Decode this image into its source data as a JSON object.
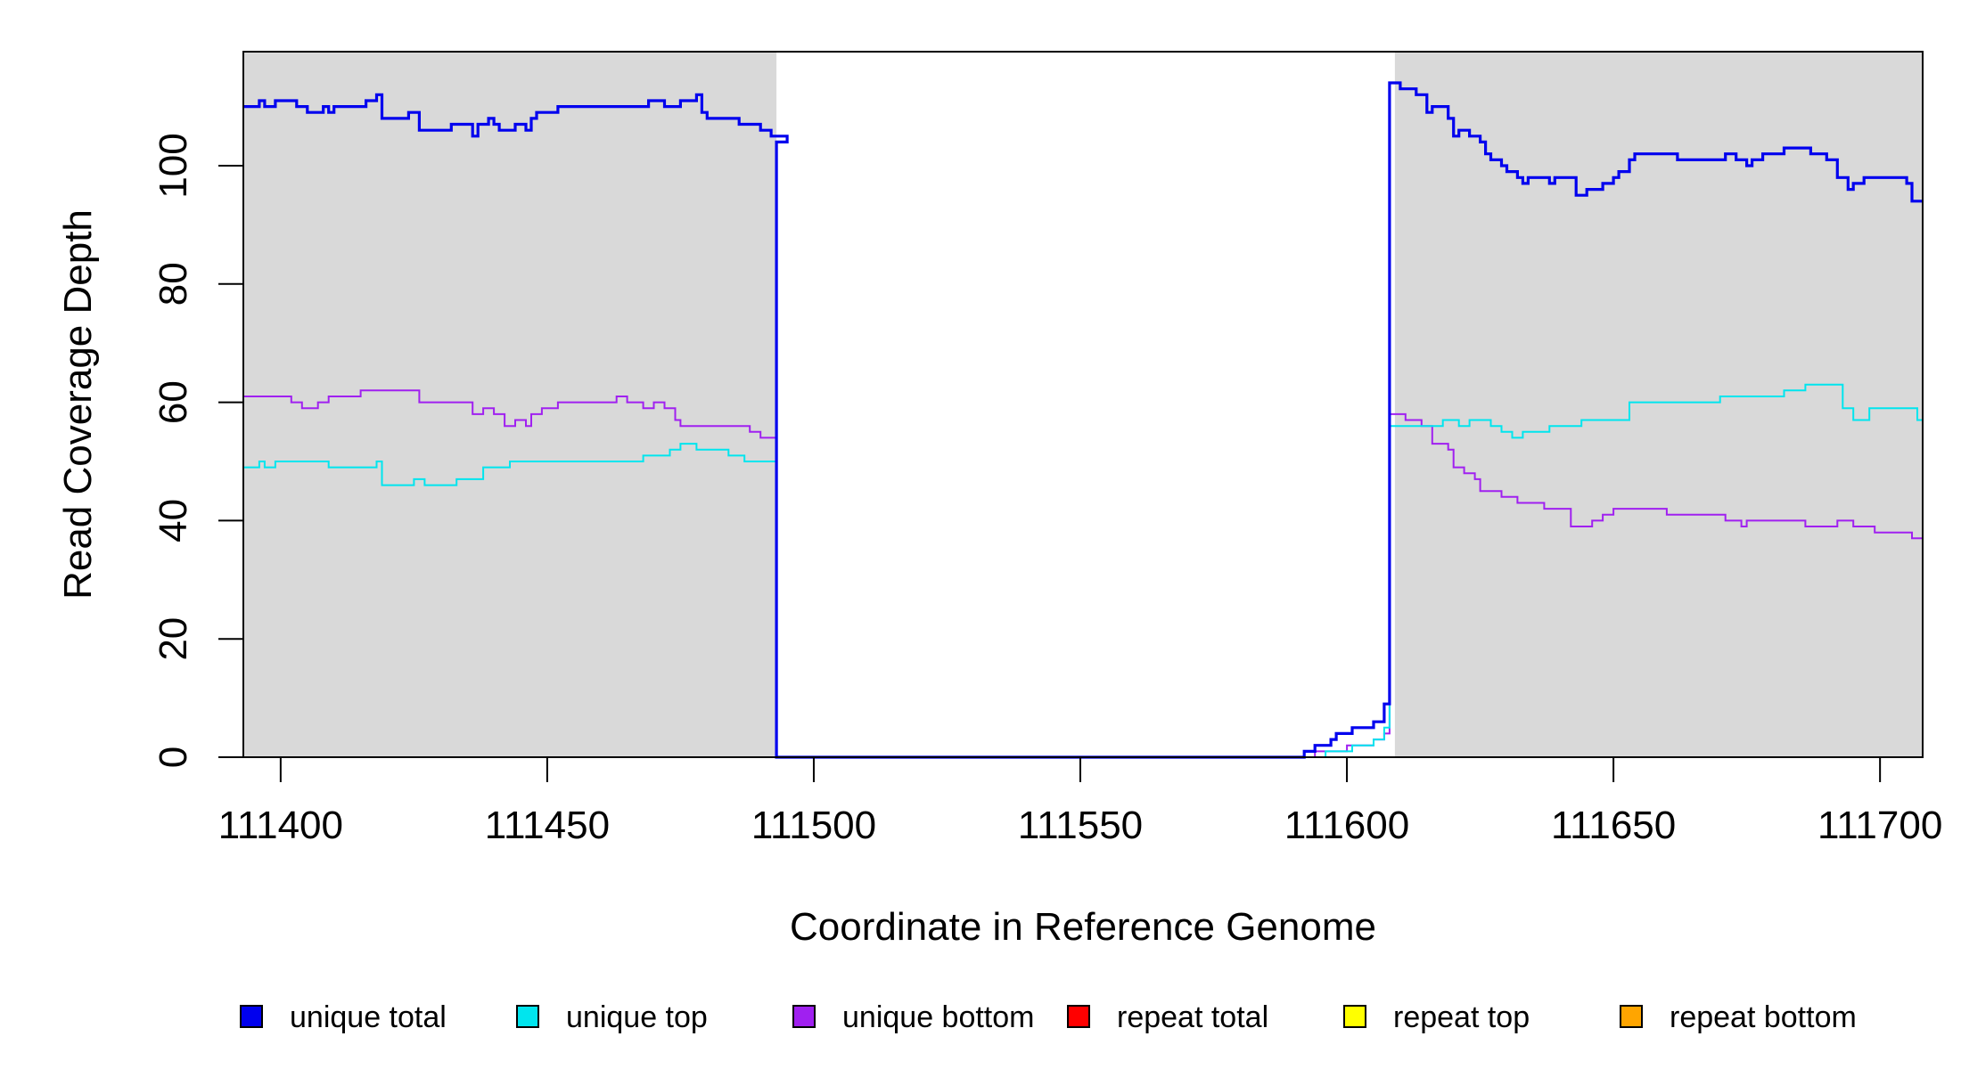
{
  "chart_data": {
    "type": "line",
    "title": "",
    "xlabel": "Coordinate in Reference Genome",
    "ylabel": "Read Coverage Depth",
    "xlim": [
      111393,
      111708
    ],
    "ylim": [
      0,
      120
    ],
    "x_ticks": [
      111400,
      111450,
      111500,
      111550,
      111600,
      111650,
      111700
    ],
    "x_tick_labels": [
      "111400",
      "111450",
      "111500",
      "111550",
      "111600",
      "111650",
      "111700"
    ],
    "y_ticks": [
      0,
      20,
      40,
      60,
      80,
      100
    ],
    "y_tick_labels": [
      "0",
      "20",
      "40",
      "60",
      "80",
      "100"
    ],
    "grid": false,
    "legend_position": "bottom",
    "shaded_regions": [
      {
        "x_start": 111393,
        "x_end": 111493,
        "color": "#d9d9d9"
      },
      {
        "x_start": 111609,
        "x_end": 111708,
        "color": "#d9d9d9"
      }
    ],
    "series": [
      {
        "name": "unique total",
        "color": "#0000ee",
        "step": true,
        "points": [
          [
            111393,
            110
          ],
          [
            111396,
            111
          ],
          [
            111397,
            110
          ],
          [
            111399,
            111
          ],
          [
            111403,
            110
          ],
          [
            111405,
            109
          ],
          [
            111408,
            110
          ],
          [
            111409,
            109
          ],
          [
            111410,
            110
          ],
          [
            111416,
            111
          ],
          [
            111418,
            112
          ],
          [
            111419,
            108
          ],
          [
            111424,
            109
          ],
          [
            111426,
            106
          ],
          [
            111432,
            107
          ],
          [
            111436,
            105
          ],
          [
            111437,
            107
          ],
          [
            111439,
            108
          ],
          [
            111440,
            107
          ],
          [
            111441,
            106
          ],
          [
            111444,
            107
          ],
          [
            111446,
            106
          ],
          [
            111447,
            108
          ],
          [
            111448,
            109
          ],
          [
            111452,
            110
          ],
          [
            111469,
            111
          ],
          [
            111472,
            110
          ],
          [
            111475,
            111
          ],
          [
            111478,
            112
          ],
          [
            111479,
            109
          ],
          [
            111480,
            108
          ],
          [
            111486,
            107
          ],
          [
            111490,
            106
          ],
          [
            111492,
            105
          ],
          [
            111495,
            104
          ],
          [
            111493,
            0
          ],
          [
            111592,
            1
          ],
          [
            111594,
            2
          ],
          [
            111597,
            3
          ],
          [
            111598,
            4
          ],
          [
            111601,
            5
          ],
          [
            111605,
            6
          ],
          [
            111607,
            9
          ],
          [
            111608,
            114
          ],
          [
            111610,
            113
          ],
          [
            111613,
            112
          ],
          [
            111615,
            109
          ],
          [
            111616,
            110
          ],
          [
            111619,
            108
          ],
          [
            111620,
            105
          ],
          [
            111621,
            106
          ],
          [
            111623,
            105
          ],
          [
            111625,
            104
          ],
          [
            111626,
            102
          ],
          [
            111627,
            101
          ],
          [
            111629,
            100
          ],
          [
            111630,
            99
          ],
          [
            111632,
            98
          ],
          [
            111633,
            97
          ],
          [
            111634,
            98
          ],
          [
            111638,
            97
          ],
          [
            111639,
            98
          ],
          [
            111643,
            95
          ],
          [
            111645,
            96
          ],
          [
            111648,
            97
          ],
          [
            111650,
            98
          ],
          [
            111651,
            99
          ],
          [
            111653,
            101
          ],
          [
            111654,
            102
          ],
          [
            111662,
            101
          ],
          [
            111668,
            101
          ],
          [
            111671,
            102
          ],
          [
            111673,
            101
          ],
          [
            111675,
            100
          ],
          [
            111676,
            101
          ],
          [
            111678,
            102
          ],
          [
            111682,
            103
          ],
          [
            111687,
            102
          ],
          [
            111690,
            101
          ],
          [
            111692,
            98
          ],
          [
            111694,
            96
          ],
          [
            111695,
            97
          ],
          [
            111697,
            98
          ],
          [
            111705,
            97
          ],
          [
            111706,
            94
          ],
          [
            111708,
            94
          ]
        ]
      },
      {
        "name": "unique top",
        "color": "#00e5ee",
        "step": true,
        "points": [
          [
            111393,
            49
          ],
          [
            111396,
            50
          ],
          [
            111397,
            49
          ],
          [
            111399,
            50
          ],
          [
            111409,
            49
          ],
          [
            111418,
            50
          ],
          [
            111419,
            46
          ],
          [
            111425,
            47
          ],
          [
            111427,
            46
          ],
          [
            111433,
            47
          ],
          [
            111438,
            49
          ],
          [
            111443,
            50
          ],
          [
            111468,
            51
          ],
          [
            111473,
            52
          ],
          [
            111475,
            53
          ],
          [
            111478,
            52
          ],
          [
            111484,
            51
          ],
          [
            111487,
            50
          ],
          [
            111493,
            50
          ],
          [
            111493,
            0
          ],
          [
            111596,
            1
          ],
          [
            111601,
            2
          ],
          [
            111605,
            3
          ],
          [
            111607,
            5
          ],
          [
            111608,
            56
          ],
          [
            111612,
            56
          ],
          [
            111618,
            57
          ],
          [
            111621,
            56
          ],
          [
            111623,
            57
          ],
          [
            111627,
            56
          ],
          [
            111629,
            55
          ],
          [
            111631,
            54
          ],
          [
            111633,
            55
          ],
          [
            111638,
            56
          ],
          [
            111644,
            57
          ],
          [
            111653,
            60
          ],
          [
            111670,
            61
          ],
          [
            111677,
            61
          ],
          [
            111682,
            62
          ],
          [
            111686,
            63
          ],
          [
            111693,
            59
          ],
          [
            111695,
            57
          ],
          [
            111698,
            59
          ],
          [
            111707,
            57
          ],
          [
            111708,
            57
          ]
        ]
      },
      {
        "name": "unique bottom",
        "color": "#a020f0",
        "step": true,
        "points": [
          [
            111393,
            61
          ],
          [
            111402,
            60
          ],
          [
            111404,
            59
          ],
          [
            111407,
            60
          ],
          [
            111409,
            61
          ],
          [
            111415,
            62
          ],
          [
            111426,
            60
          ],
          [
            111436,
            58
          ],
          [
            111438,
            59
          ],
          [
            111440,
            58
          ],
          [
            111442,
            56
          ],
          [
            111444,
            57
          ],
          [
            111446,
            56
          ],
          [
            111447,
            58
          ],
          [
            111449,
            59
          ],
          [
            111452,
            60
          ],
          [
            111463,
            61
          ],
          [
            111465,
            60
          ],
          [
            111468,
            59
          ],
          [
            111470,
            60
          ],
          [
            111472,
            59
          ],
          [
            111474,
            57
          ],
          [
            111475,
            56
          ],
          [
            111488,
            55
          ],
          [
            111490,
            54
          ],
          [
            111493,
            54
          ],
          [
            111493,
            0
          ],
          [
            111594,
            1
          ],
          [
            111600,
            2
          ],
          [
            111605,
            3
          ],
          [
            111607,
            4
          ],
          [
            111608,
            58
          ],
          [
            111611,
            57
          ],
          [
            111614,
            56
          ],
          [
            111616,
            53
          ],
          [
            111619,
            52
          ],
          [
            111620,
            49
          ],
          [
            111622,
            48
          ],
          [
            111624,
            47
          ],
          [
            111625,
            45
          ],
          [
            111629,
            44
          ],
          [
            111632,
            43
          ],
          [
            111637,
            42
          ],
          [
            111642,
            39
          ],
          [
            111646,
            40
          ],
          [
            111648,
            41
          ],
          [
            111650,
            42
          ],
          [
            111660,
            41
          ],
          [
            111671,
            40
          ],
          [
            111674,
            39
          ],
          [
            111675,
            40
          ],
          [
            111686,
            39
          ],
          [
            111692,
            40
          ],
          [
            111695,
            39
          ],
          [
            111699,
            38
          ],
          [
            111706,
            37
          ],
          [
            111708,
            37
          ]
        ]
      },
      {
        "name": "repeat total",
        "color": "#ff0000",
        "step": true,
        "points": [
          [
            111393,
            0
          ],
          [
            111708,
            0
          ]
        ]
      },
      {
        "name": "repeat top",
        "color": "#ffff00",
        "step": true,
        "points": [
          [
            111393,
            0
          ],
          [
            111708,
            0
          ]
        ]
      },
      {
        "name": "repeat bottom",
        "color": "#ffa500",
        "step": true,
        "points": [
          [
            111393,
            0
          ],
          [
            111708,
            0
          ]
        ]
      }
    ]
  }
}
